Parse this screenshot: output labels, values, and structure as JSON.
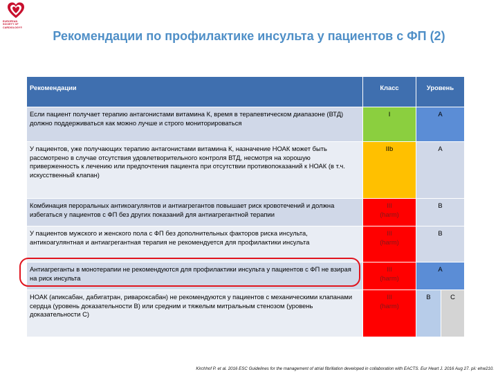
{
  "logo": {
    "lines": [
      "EUROPEAN",
      "SOCIETY OF",
      "CARDIOLOGY®"
    ],
    "icon": "heart-logo-icon",
    "color": "#c8102e"
  },
  "title": "Рекомендации по профилактике инсульта у пациентов с ФП (2)",
  "table": {
    "headers": {
      "recommendation": "Рекомендации",
      "class": "Класс",
      "level": "Уровень"
    },
    "rows": [
      {
        "text": "Если пациент получает терапию антагонистами витамина К, время в терапевтическом диапазоне (ВТД) должно поддерживаться как можно лучше и строго мониторироваться",
        "class": "I",
        "class_note": "",
        "level": "A",
        "level2": ""
      },
      {
        "text": "У пациентов, уже получающих терапию антагонистами витамина К, назначение НОАК может быть рассмотрено в случае отсутствия удовлетворительного контроля ВТД, несмотря на хорошую приверженность к лечению или предпочтения пациента при отсутствии противопоказаний к НОАК (в т.ч. искусственный клапан)",
        "class": "IIb",
        "class_note": "",
        "level": "A",
        "level2": ""
      },
      {
        "text": "Комбинация пероральных антикоагулянтов и антиагрегантов повышает риск кровотечений и должна избегаться у пациентов с ФП без других показаний для антиагрегантной терапии",
        "class": "III",
        "class_note": "(harm)",
        "level": "B",
        "level2": ""
      },
      {
        "text": "У пациентов мужского и женского пола с ФП без дополнительных факторов риска инсульта, антикоагулянтная и антиагрегантная терапия не рекомендуется для профилактики инсульта",
        "class": "III",
        "class_note": "(harm)",
        "level": "B",
        "level2": ""
      },
      {
        "text": "Антиагреганты в монотерапии не рекомендуются для профилактики инсульта у пациентов с ФП не взирая на риск инсульта",
        "class": "III",
        "class_note": "(harm)",
        "level": "A",
        "level2": ""
      },
      {
        "text": "НОАК (апиксабан, дабигатран, ривароксабан) не рекомендуются у пациентов с механическими клапанами сердца (уровень доказательности B) или средним и тяжелым митральным стенозом (уровень доказательности C)",
        "class": "III",
        "class_note": "(harm)",
        "level": "B",
        "level2": "C"
      }
    ]
  },
  "footnote": "Kirchhof P. et al. 2016 ESC Guidelines for the management of atrial fibrillation developed in collaboration with EACTS. Eur Heart J. 2016 Aug 27. pii: ehw210.",
  "colors": {
    "title": "#4f8fc7",
    "header": "#3f6faf",
    "class_I": "#8bcf3f",
    "class_IIb": "#ffc000",
    "class_III": "#ff0000",
    "level_cell": "#5b8dd6",
    "highlight_border": "#e0141e"
  }
}
